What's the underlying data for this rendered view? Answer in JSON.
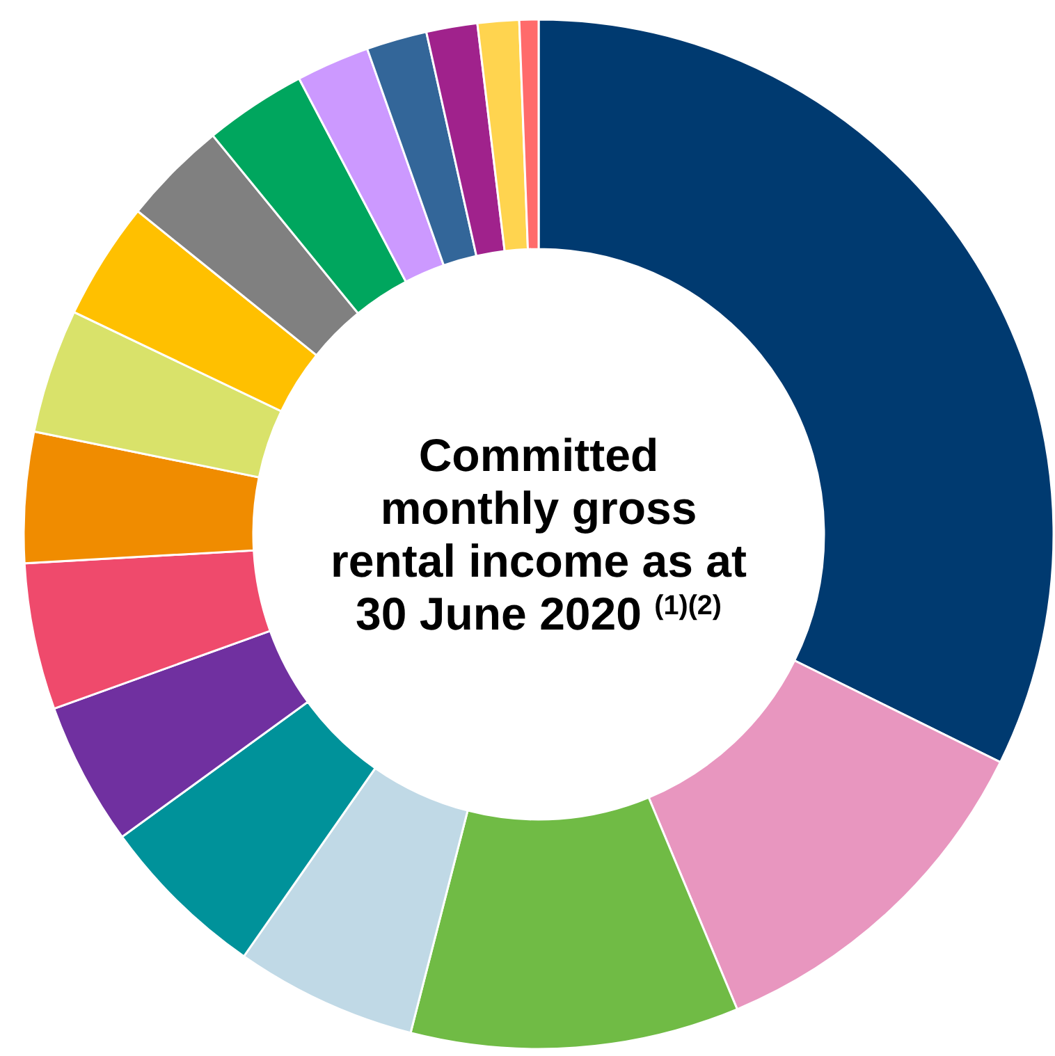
{
  "chart_data": {
    "type": "donut",
    "title": "Committed monthly gross rental income as at 30 June 2020 $^{(1)(2)}$",
    "categories": [
      null,
      null,
      null,
      null,
      null,
      null,
      null,
      null,
      null,
      null,
      null,
      null,
      null,
      null,
      null,
      null,
      null
    ],
    "values": [
      32.3,
      11.4,
      10.3,
      5.7,
      5.3,
      4.5,
      4.6,
      4.1,
      3.9,
      3.7,
      3.3,
      3.2,
      2.3,
      1.9,
      1.6,
      1.3,
      0.6
    ],
    "colors": [
      "#003a70",
      "#e896bf",
      "#70bb45",
      "#c0d9e6",
      "#00929a",
      "#7030a0",
      "#ef4a6c",
      "#f08c00",
      "#d9e26a",
      "#ffc000",
      "#808080",
      "#00a65e",
      "#cc99ff",
      "#336699",
      "#a0228c",
      "#ffd44f",
      "#ff6b6b"
    ]
  }
}
